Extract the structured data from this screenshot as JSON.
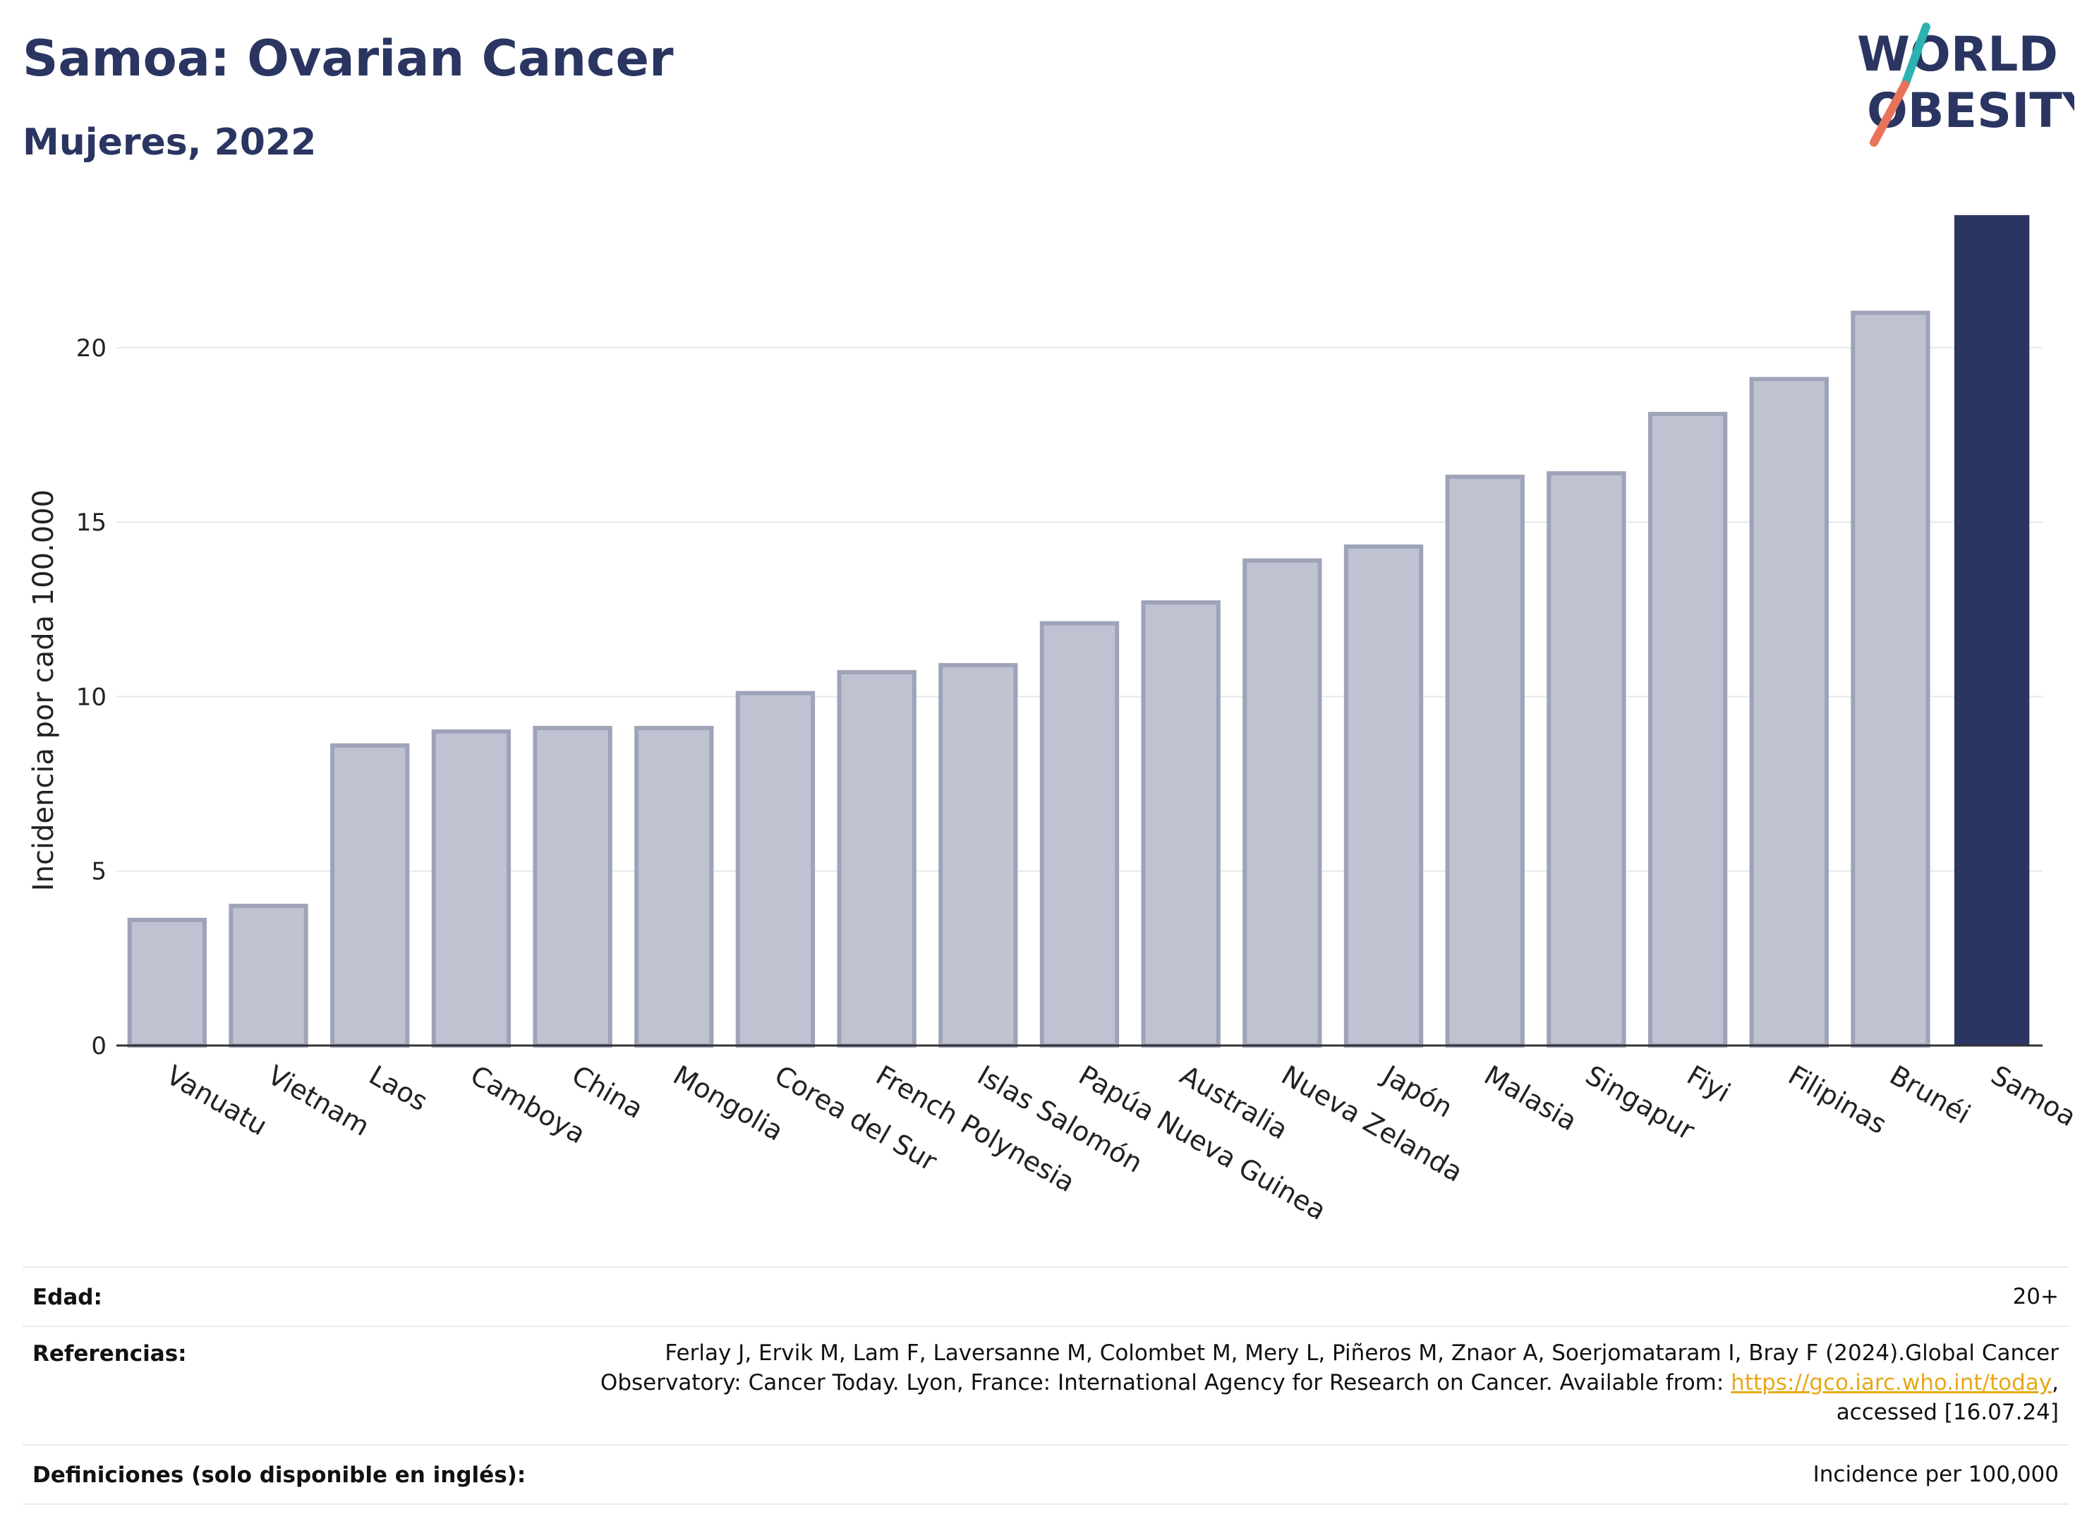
{
  "header": {
    "title": "Samoa: Ovarian Cancer",
    "subtitle": "Mujeres, 2022"
  },
  "logo": {
    "line1": "WORLD",
    "line2": "OBESITY",
    "accent_teal": "#2bb3b1",
    "accent_coral": "#e8735a"
  },
  "chart_data": {
    "type": "bar",
    "ylabel": "Incidencia por cada 100.000",
    "ylim": [
      0,
      24
    ],
    "yticks": [
      0,
      5,
      10,
      15,
      20
    ],
    "grid": true,
    "categories": [
      "Vanuatu",
      "Vietnam",
      "Laos",
      "Camboya",
      "China",
      "Mongolia",
      "Corea del Sur",
      "French Polynesia",
      "Islas Salomón",
      "Papúa Nueva Guinea",
      "Australia",
      "Nueva Zelanda",
      "Japón",
      "Malasia",
      "Singapur",
      "Fiyi",
      "Filipinas",
      "Brunéi",
      "Samoa"
    ],
    "values": [
      3.6,
      4.0,
      8.6,
      9.0,
      9.1,
      9.1,
      10.1,
      10.7,
      10.9,
      12.1,
      12.7,
      13.9,
      14.3,
      16.3,
      16.4,
      18.1,
      19.1,
      21.0,
      23.8
    ],
    "highlight": "Samoa",
    "colors": {
      "bar": "#bfc2d0",
      "bar_edge": "#9ea3b8",
      "highlight": "#2a3561"
    }
  },
  "info": {
    "age_label": "Edad:",
    "age_value": "20+",
    "refs_label": "Referencias:",
    "refs_line1": "Ferlay J, Ervik M, Lam F, Laversanne M, Colombet M, Mery L, Piñeros M, Znaor A, Soerjomataram I, Bray F (2024).Global Cancer",
    "refs_line2_pre": "Observatory: Cancer Today. Lyon, France: International Agency for Research on Cancer. Available from: ",
    "refs_link": "https://gco.iarc.who.int/today",
    "refs_line2_post": ",",
    "refs_line3": "accessed [16.07.24]",
    "defs_label": "Definiciones (solo disponible en inglés):",
    "defs_value": "Incidence per 100,000"
  }
}
